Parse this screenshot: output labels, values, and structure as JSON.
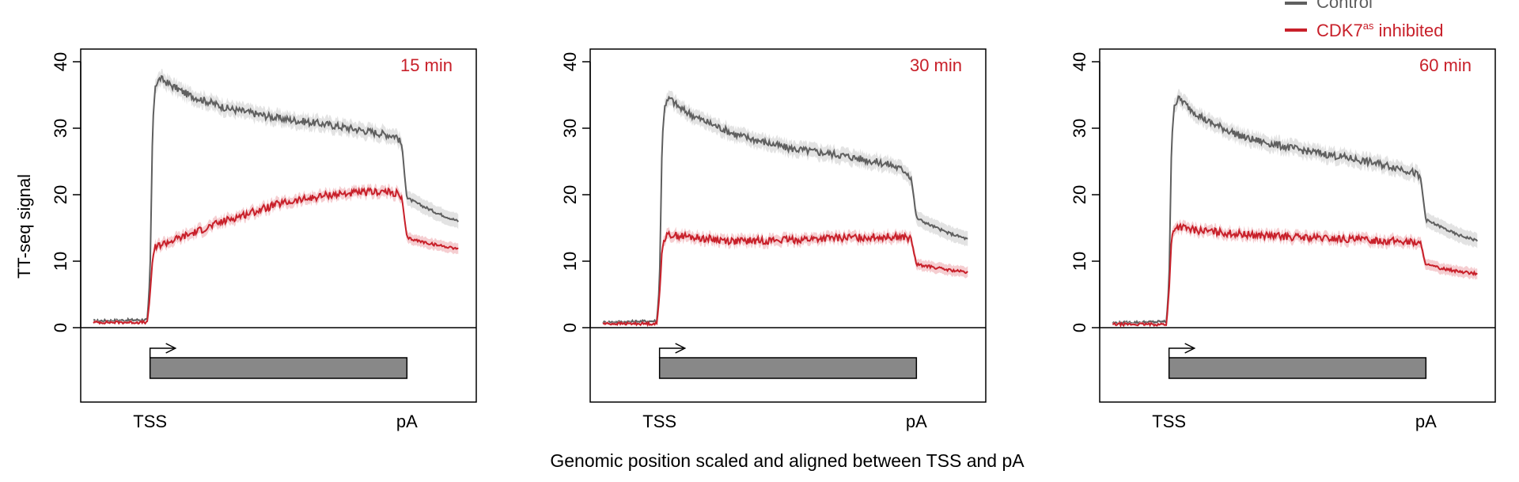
{
  "colors": {
    "control": "#5f5f5f",
    "inhibited": "#c8202a",
    "control_band": "#e0e0e0",
    "inhibited_band": "#f4c9cc",
    "gene_body": "#888888",
    "panel_label": "#c8202a"
  },
  "legend": {
    "position": "top-right",
    "items": [
      {
        "label": "Control",
        "color": "#5f5f5f"
      },
      {
        "label": "CDK7",
        "superscript": "as",
        "suffix": " inhibited",
        "color": "#c8202a"
      }
    ]
  },
  "ylabel": "TT-seq signal",
  "xlabel": "Genomic position scaled and aligned between TSS and pA",
  "gene_track": {
    "tss_label": "TSS",
    "pa_label": "pA"
  },
  "chart_data": [
    {
      "type": "line",
      "panel_label": "15 min",
      "ylim": [
        0,
        40
      ],
      "yticks": [
        0,
        10,
        20,
        30,
        40
      ],
      "xlim": [
        -0.27,
        1.27
      ],
      "x_tick_labels": [
        {
          "x": 0,
          "label": "TSS"
        },
        {
          "x": 1,
          "label": "pA"
        }
      ],
      "series": [
        {
          "name": "Control",
          "x": [
            -0.22,
            -0.01,
            0.0,
            0.01,
            0.02,
            0.04,
            0.08,
            0.15,
            0.3,
            0.5,
            0.7,
            0.9,
            0.96,
            0.98,
            1.0,
            1.05,
            1.12,
            1.2
          ],
          "y": [
            1.0,
            1.2,
            8.0,
            30.0,
            36.5,
            37.5,
            36.5,
            35.0,
            33.0,
            31.5,
            30.5,
            29.2,
            28.8,
            27.5,
            19.5,
            18.5,
            17.2,
            16.0
          ]
        },
        {
          "name": "CDK7as inhibited",
          "x": [
            -0.22,
            -0.01,
            0.0,
            0.01,
            0.02,
            0.04,
            0.08,
            0.15,
            0.3,
            0.5,
            0.7,
            0.9,
            0.96,
            0.98,
            1.0,
            1.05,
            1.12,
            1.2
          ],
          "y": [
            0.8,
            0.8,
            5.0,
            10.5,
            12.0,
            12.5,
            13.0,
            14.0,
            16.2,
            18.6,
            20.0,
            20.5,
            20.2,
            19.5,
            13.5,
            13.0,
            12.4,
            11.9
          ]
        }
      ]
    },
    {
      "type": "line",
      "panel_label": "30 min",
      "ylim": [
        0,
        40
      ],
      "yticks": [
        0,
        10,
        20,
        30,
        40
      ],
      "xlim": [
        -0.27,
        1.27
      ],
      "x_tick_labels": [
        {
          "x": 0,
          "label": "TSS"
        },
        {
          "x": 1,
          "label": "pA"
        }
      ],
      "series": [
        {
          "name": "Control",
          "x": [
            -0.22,
            -0.01,
            0.0,
            0.01,
            0.02,
            0.04,
            0.08,
            0.15,
            0.3,
            0.5,
            0.7,
            0.9,
            0.96,
            0.98,
            1.0,
            1.05,
            1.12,
            1.2
          ],
          "y": [
            0.8,
            1.0,
            7.0,
            28.0,
            33.5,
            34.5,
            33.0,
            31.5,
            29.0,
            27.0,
            26.0,
            24.5,
            23.5,
            22.5,
            16.5,
            15.5,
            14.3,
            13.3
          ]
        },
        {
          "name": "CDK7as inhibited",
          "x": [
            -0.22,
            -0.01,
            0.0,
            0.01,
            0.02,
            0.04,
            0.08,
            0.15,
            0.3,
            0.5,
            0.7,
            0.9,
            0.96,
            0.98,
            1.0,
            1.05,
            1.12,
            1.2
          ],
          "y": [
            0.6,
            0.6,
            5.0,
            12.0,
            13.5,
            14.0,
            13.8,
            13.5,
            13.0,
            13.2,
            13.5,
            13.7,
            13.6,
            13.2,
            9.5,
            9.2,
            8.7,
            8.3
          ]
        }
      ]
    },
    {
      "type": "line",
      "panel_label": "60 min",
      "ylim": [
        0,
        40
      ],
      "yticks": [
        0,
        10,
        20,
        30,
        40
      ],
      "xlim": [
        -0.27,
        1.27
      ],
      "x_tick_labels": [
        {
          "x": 0,
          "label": "TSS"
        },
        {
          "x": 1,
          "label": "pA"
        }
      ],
      "series": [
        {
          "name": "Control",
          "x": [
            -0.22,
            -0.01,
            0.0,
            0.01,
            0.02,
            0.04,
            0.08,
            0.15,
            0.3,
            0.5,
            0.7,
            0.9,
            0.96,
            0.98,
            1.0,
            1.05,
            1.12,
            1.2
          ],
          "y": [
            0.7,
            0.9,
            7.0,
            28.0,
            33.5,
            34.5,
            33.0,
            31.0,
            28.5,
            26.8,
            25.5,
            24.0,
            23.2,
            22.3,
            16.2,
            15.3,
            14.0,
            13.1
          ]
        },
        {
          "name": "CDK7as inhibited",
          "x": [
            -0.22,
            -0.01,
            0.0,
            0.01,
            0.02,
            0.04,
            0.08,
            0.15,
            0.3,
            0.5,
            0.7,
            0.9,
            0.96,
            0.98,
            1.0,
            1.05,
            1.12,
            1.2
          ],
          "y": [
            0.5,
            0.5,
            5.5,
            13.5,
            15.0,
            15.2,
            14.8,
            14.5,
            14.0,
            13.6,
            13.3,
            13.0,
            12.8,
            12.5,
            9.5,
            9.0,
            8.5,
            8.1
          ]
        }
      ]
    }
  ]
}
